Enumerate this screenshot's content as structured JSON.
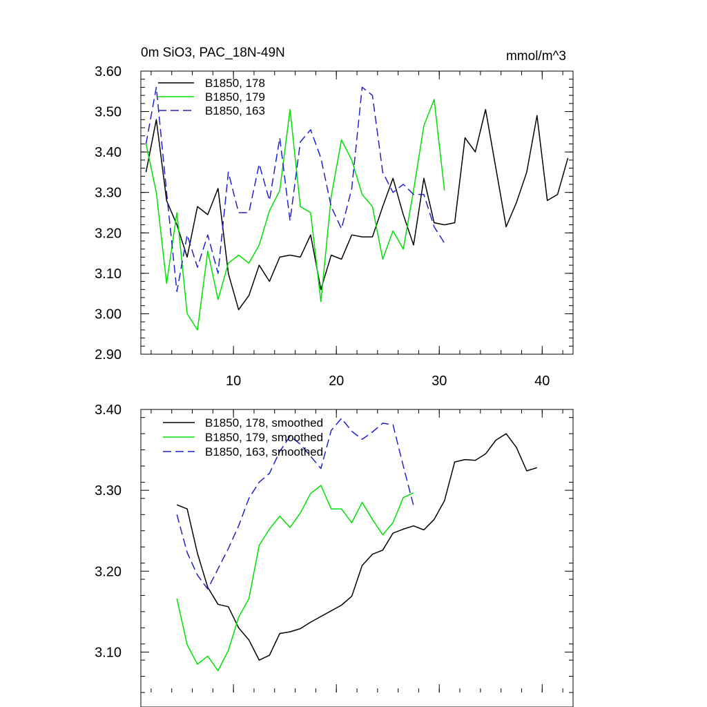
{
  "chart_data": [
    {
      "type": "line",
      "title": "0m SiO3, PAC_18N-49N",
      "units_label": "mmol/m^3",
      "xlim": [
        1,
        43
      ],
      "ylim": [
        2.9,
        3.6
      ],
      "x_major_ticks": [
        10,
        20,
        30,
        40
      ],
      "x_tick_labels": [
        "10",
        "20",
        "30",
        "40"
      ],
      "y_major_ticks": [
        2.9,
        3.0,
        3.1,
        3.2,
        3.3,
        3.4,
        3.5,
        3.6
      ],
      "y_tick_labels": [
        "2.90",
        "3.00",
        "3.10",
        "3.20",
        "3.30",
        "3.40",
        "3.50",
        "3.60"
      ],
      "legend_position": "top-left",
      "series": [
        {
          "name": "B1850, 178",
          "color": "#000000",
          "dash": "solid",
          "x": [
            1.5,
            2.5,
            3.5,
            4.5,
            5.5,
            6.5,
            7.5,
            8.5,
            9.5,
            10.5,
            11.5,
            12.5,
            13.5,
            14.5,
            15.5,
            16.5,
            17.5,
            18.5,
            19.5,
            20.5,
            21.5,
            22.5,
            23.5,
            24.5,
            25.5,
            26.5,
            27.5,
            28.5,
            29.5,
            30.5,
            31.5,
            32.5,
            33.5,
            34.5,
            35.5,
            36.5,
            37.5,
            38.5,
            39.5,
            40.5,
            41.5,
            42.5
          ],
          "values": [
            3.35,
            3.48,
            3.28,
            3.22,
            3.14,
            3.265,
            3.245,
            3.31,
            3.1,
            3.01,
            3.045,
            3.12,
            3.08,
            3.14,
            3.145,
            3.14,
            3.195,
            3.06,
            3.145,
            3.135,
            3.195,
            3.19,
            3.19,
            3.265,
            3.335,
            3.245,
            3.17,
            3.335,
            3.225,
            3.22,
            3.225,
            3.435,
            3.4,
            3.505,
            3.36,
            3.215,
            3.275,
            3.35,
            3.49,
            3.28,
            3.295,
            3.385
          ]
        },
        {
          "name": "B1850, 179",
          "color": "#00e000",
          "dash": "solid",
          "x": [
            1.5,
            2.5,
            3.5,
            4.5,
            5.5,
            6.5,
            7.5,
            8.5,
            9.5,
            10.5,
            11.5,
            12.5,
            13.5,
            14.5,
            15.5,
            16.5,
            17.5,
            18.5,
            19.5,
            20.5,
            21.5,
            22.5,
            23.5,
            24.5,
            25.5,
            26.5,
            27.5,
            28.5,
            29.5,
            30.5
          ],
          "values": [
            3.42,
            3.3,
            3.075,
            3.25,
            3.0,
            2.96,
            3.155,
            3.035,
            3.125,
            3.145,
            3.125,
            3.17,
            3.255,
            3.305,
            3.505,
            3.265,
            3.25,
            3.03,
            3.29,
            3.43,
            3.38,
            3.295,
            3.265,
            3.135,
            3.205,
            3.16,
            3.305,
            3.465,
            3.53,
            3.305
          ]
        },
        {
          "name": "B1850, 163",
          "color": "#1f1fcf",
          "dash": "dashed",
          "x": [
            1.5,
            2.5,
            3.5,
            4.5,
            5.5,
            6.5,
            7.5,
            8.5,
            9.5,
            10.5,
            11.5,
            12.5,
            13.5,
            14.5,
            15.5,
            16.5,
            17.5,
            18.5,
            19.5,
            20.5,
            21.5,
            22.5,
            23.5,
            24.5,
            25.5,
            26.5,
            27.5,
            28.5,
            29.5,
            30.5
          ],
          "values": [
            3.42,
            3.56,
            3.3,
            3.055,
            3.195,
            3.115,
            3.195,
            3.1,
            3.35,
            3.25,
            3.25,
            3.37,
            3.28,
            3.435,
            3.23,
            3.425,
            3.455,
            3.385,
            3.265,
            3.21,
            3.31,
            3.56,
            3.54,
            3.35,
            3.3,
            3.32,
            3.295,
            3.295,
            3.215,
            3.175
          ]
        }
      ]
    },
    {
      "type": "line",
      "xlim": [
        1,
        43
      ],
      "ylim": [
        3.05,
        3.4
      ],
      "x_major_ticks": [
        10,
        20,
        30,
        40
      ],
      "y_major_ticks": [
        3.1,
        3.2,
        3.3,
        3.4
      ],
      "y_tick_labels": [
        "3.10",
        "3.20",
        "3.30",
        "3.40"
      ],
      "legend_position": "top-left",
      "series": [
        {
          "name": "B1850, 178, smoothed",
          "color": "#000000",
          "dash": "solid",
          "x": [
            4.5,
            5.5,
            6.5,
            7.5,
            8.5,
            9.5,
            10.5,
            11.5,
            12.5,
            13.5,
            14.5,
            15.5,
            16.5,
            17.5,
            18.5,
            19.5,
            20.5,
            21.5,
            22.5,
            23.5,
            24.5,
            25.5,
            26.5,
            27.5,
            28.5,
            29.5,
            30.5,
            31.5,
            32.5,
            33.5,
            34.5,
            35.5,
            36.5,
            37.5,
            38.5,
            39.5
          ],
          "values": [
            3.282,
            3.277,
            3.222,
            3.18,
            3.159,
            3.156,
            3.13,
            3.115,
            3.09,
            3.096,
            3.123,
            3.125,
            3.129,
            3.137,
            3.144,
            3.151,
            3.158,
            3.169,
            3.207,
            3.221,
            3.226,
            3.247,
            3.252,
            3.256,
            3.251,
            3.264,
            3.287,
            3.335,
            3.338,
            3.337,
            3.345,
            3.362,
            3.37,
            3.353,
            3.324,
            3.328
          ]
        },
        {
          "name": "B1850, 179, smoothed",
          "color": "#00e000",
          "dash": "solid",
          "x": [
            4.5,
            5.5,
            6.5,
            7.5,
            8.5,
            9.5,
            10.5,
            11.5,
            12.5,
            13.5,
            14.5,
            15.5,
            16.5,
            17.5,
            18.5,
            19.5,
            20.5,
            21.5,
            22.5,
            23.5,
            24.5,
            25.5,
            26.5,
            27.5
          ],
          "values": [
            3.166,
            3.109,
            3.085,
            3.095,
            3.077,
            3.102,
            3.143,
            3.166,
            3.232,
            3.252,
            3.268,
            3.254,
            3.272,
            3.296,
            3.306,
            3.277,
            3.277,
            3.26,
            3.285,
            3.264,
            3.245,
            3.26,
            3.291,
            3.297
          ]
        },
        {
          "name": "B1850, 163, smoothed",
          "color": "#1f1fcf",
          "dash": "dashed",
          "x": [
            4.5,
            5.5,
            6.5,
            7.5,
            8.5,
            9.5,
            10.5,
            11.5,
            12.5,
            13.5,
            14.5,
            15.5,
            16.5,
            17.5,
            18.5,
            19.5,
            20.5,
            21.5,
            22.5,
            23.5,
            24.5,
            25.5,
            26.5,
            27.5
          ],
          "values": [
            3.27,
            3.223,
            3.195,
            3.178,
            3.203,
            3.228,
            3.256,
            3.29,
            3.31,
            3.321,
            3.348,
            3.367,
            3.357,
            3.342,
            3.327,
            3.374,
            3.389,
            3.373,
            3.363,
            3.372,
            3.383,
            3.381,
            3.33,
            3.281
          ]
        }
      ]
    }
  ]
}
